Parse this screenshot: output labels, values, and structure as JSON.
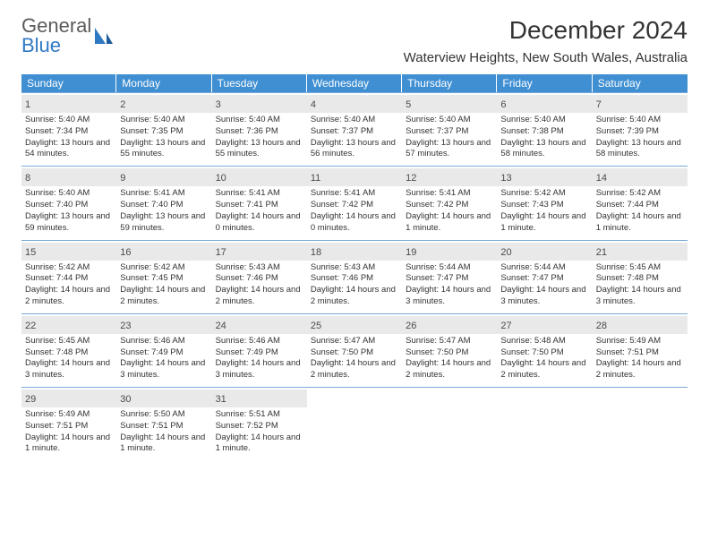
{
  "logo": {
    "line1": "General",
    "line2": "Blue"
  },
  "title": "December 2024",
  "location": "Waterview Heights, New South Wales, Australia",
  "colors": {
    "header_bg": "#3f8fd2",
    "header_text": "#ffffff",
    "border": "#7aa9d4",
    "daynum_bg": "#e9e9e9",
    "logo_gray": "#5b5b5b",
    "logo_blue": "#2f78c4",
    "text": "#333333",
    "background": "#ffffff"
  },
  "day_headers": [
    "Sunday",
    "Monday",
    "Tuesday",
    "Wednesday",
    "Thursday",
    "Friday",
    "Saturday"
  ],
  "days": [
    {
      "n": "1",
      "sunrise": "Sunrise: 5:40 AM",
      "sunset": "Sunset: 7:34 PM",
      "daylight": "Daylight: 13 hours and 54 minutes."
    },
    {
      "n": "2",
      "sunrise": "Sunrise: 5:40 AM",
      "sunset": "Sunset: 7:35 PM",
      "daylight": "Daylight: 13 hours and 55 minutes."
    },
    {
      "n": "3",
      "sunrise": "Sunrise: 5:40 AM",
      "sunset": "Sunset: 7:36 PM",
      "daylight": "Daylight: 13 hours and 55 minutes."
    },
    {
      "n": "4",
      "sunrise": "Sunrise: 5:40 AM",
      "sunset": "Sunset: 7:37 PM",
      "daylight": "Daylight: 13 hours and 56 minutes."
    },
    {
      "n": "5",
      "sunrise": "Sunrise: 5:40 AM",
      "sunset": "Sunset: 7:37 PM",
      "daylight": "Daylight: 13 hours and 57 minutes."
    },
    {
      "n": "6",
      "sunrise": "Sunrise: 5:40 AM",
      "sunset": "Sunset: 7:38 PM",
      "daylight": "Daylight: 13 hours and 58 minutes."
    },
    {
      "n": "7",
      "sunrise": "Sunrise: 5:40 AM",
      "sunset": "Sunset: 7:39 PM",
      "daylight": "Daylight: 13 hours and 58 minutes."
    },
    {
      "n": "8",
      "sunrise": "Sunrise: 5:40 AM",
      "sunset": "Sunset: 7:40 PM",
      "daylight": "Daylight: 13 hours and 59 minutes."
    },
    {
      "n": "9",
      "sunrise": "Sunrise: 5:41 AM",
      "sunset": "Sunset: 7:40 PM",
      "daylight": "Daylight: 13 hours and 59 minutes."
    },
    {
      "n": "10",
      "sunrise": "Sunrise: 5:41 AM",
      "sunset": "Sunset: 7:41 PM",
      "daylight": "Daylight: 14 hours and 0 minutes."
    },
    {
      "n": "11",
      "sunrise": "Sunrise: 5:41 AM",
      "sunset": "Sunset: 7:42 PM",
      "daylight": "Daylight: 14 hours and 0 minutes."
    },
    {
      "n": "12",
      "sunrise": "Sunrise: 5:41 AM",
      "sunset": "Sunset: 7:42 PM",
      "daylight": "Daylight: 14 hours and 1 minute."
    },
    {
      "n": "13",
      "sunrise": "Sunrise: 5:42 AM",
      "sunset": "Sunset: 7:43 PM",
      "daylight": "Daylight: 14 hours and 1 minute."
    },
    {
      "n": "14",
      "sunrise": "Sunrise: 5:42 AM",
      "sunset": "Sunset: 7:44 PM",
      "daylight": "Daylight: 14 hours and 1 minute."
    },
    {
      "n": "15",
      "sunrise": "Sunrise: 5:42 AM",
      "sunset": "Sunset: 7:44 PM",
      "daylight": "Daylight: 14 hours and 2 minutes."
    },
    {
      "n": "16",
      "sunrise": "Sunrise: 5:42 AM",
      "sunset": "Sunset: 7:45 PM",
      "daylight": "Daylight: 14 hours and 2 minutes."
    },
    {
      "n": "17",
      "sunrise": "Sunrise: 5:43 AM",
      "sunset": "Sunset: 7:46 PM",
      "daylight": "Daylight: 14 hours and 2 minutes."
    },
    {
      "n": "18",
      "sunrise": "Sunrise: 5:43 AM",
      "sunset": "Sunset: 7:46 PM",
      "daylight": "Daylight: 14 hours and 2 minutes."
    },
    {
      "n": "19",
      "sunrise": "Sunrise: 5:44 AM",
      "sunset": "Sunset: 7:47 PM",
      "daylight": "Daylight: 14 hours and 3 minutes."
    },
    {
      "n": "20",
      "sunrise": "Sunrise: 5:44 AM",
      "sunset": "Sunset: 7:47 PM",
      "daylight": "Daylight: 14 hours and 3 minutes."
    },
    {
      "n": "21",
      "sunrise": "Sunrise: 5:45 AM",
      "sunset": "Sunset: 7:48 PM",
      "daylight": "Daylight: 14 hours and 3 minutes."
    },
    {
      "n": "22",
      "sunrise": "Sunrise: 5:45 AM",
      "sunset": "Sunset: 7:48 PM",
      "daylight": "Daylight: 14 hours and 3 minutes."
    },
    {
      "n": "23",
      "sunrise": "Sunrise: 5:46 AM",
      "sunset": "Sunset: 7:49 PM",
      "daylight": "Daylight: 14 hours and 3 minutes."
    },
    {
      "n": "24",
      "sunrise": "Sunrise: 5:46 AM",
      "sunset": "Sunset: 7:49 PM",
      "daylight": "Daylight: 14 hours and 3 minutes."
    },
    {
      "n": "25",
      "sunrise": "Sunrise: 5:47 AM",
      "sunset": "Sunset: 7:50 PM",
      "daylight": "Daylight: 14 hours and 2 minutes."
    },
    {
      "n": "26",
      "sunrise": "Sunrise: 5:47 AM",
      "sunset": "Sunset: 7:50 PM",
      "daylight": "Daylight: 14 hours and 2 minutes."
    },
    {
      "n": "27",
      "sunrise": "Sunrise: 5:48 AM",
      "sunset": "Sunset: 7:50 PM",
      "daylight": "Daylight: 14 hours and 2 minutes."
    },
    {
      "n": "28",
      "sunrise": "Sunrise: 5:49 AM",
      "sunset": "Sunset: 7:51 PM",
      "daylight": "Daylight: 14 hours and 2 minutes."
    },
    {
      "n": "29",
      "sunrise": "Sunrise: 5:49 AM",
      "sunset": "Sunset: 7:51 PM",
      "daylight": "Daylight: 14 hours and 1 minute."
    },
    {
      "n": "30",
      "sunrise": "Sunrise: 5:50 AM",
      "sunset": "Sunset: 7:51 PM",
      "daylight": "Daylight: 14 hours and 1 minute."
    },
    {
      "n": "31",
      "sunrise": "Sunrise: 5:51 AM",
      "sunset": "Sunset: 7:52 PM",
      "daylight": "Daylight: 14 hours and 1 minute."
    }
  ]
}
